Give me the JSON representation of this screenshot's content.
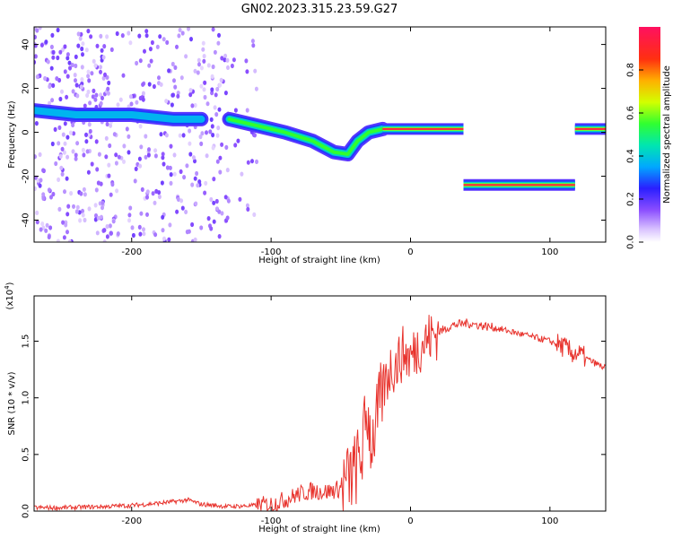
{
  "figure": {
    "title": "GN02.2023.315.23.59.G27"
  },
  "chart_data": [
    {
      "type": "heatmap",
      "xlabel": "Height of straight line (km)",
      "ylabel": "Frequency (Hz)",
      "xlim": [
        -270,
        140
      ],
      "ylim": [
        -50,
        48
      ],
      "x_ticks": [
        -200,
        -100,
        0,
        100
      ],
      "x_tick_labels": [
        "-200",
        "-100",
        "0",
        "100"
      ],
      "y_ticks": [
        -40,
        -20,
        0,
        20,
        40
      ],
      "y_tick_labels": [
        "-40",
        "-20",
        "0",
        "20",
        "40"
      ],
      "colorbar": {
        "label": "Normalized spectral amplitude",
        "range": [
          0,
          1
        ],
        "ticks": [
          0.0,
          0.2,
          0.4,
          0.6,
          0.8
        ],
        "tick_labels": [
          "0.0",
          "0.2",
          "0.4",
          "0.6",
          "0.8"
        ]
      },
      "tracks": [
        {
          "x": [
            -270,
            -240,
            -200,
            -170,
            -150
          ],
          "y": [
            10,
            8,
            8,
            6,
            6
          ],
          "amplitude": 0.22
        },
        {
          "x": [
            -130,
            -110,
            -90,
            -70,
            -55,
            -45,
            -38,
            -30,
            -20
          ],
          "y": [
            6,
            3,
            0,
            -4,
            -9,
            -10,
            -4,
            0,
            1.5
          ],
          "amplitude": 0.4
        },
        {
          "x": [
            -20,
            0,
            20,
            38
          ],
          "y": [
            1.5,
            1.5,
            1.5,
            1.5
          ],
          "amplitude": 0.95
        },
        {
          "x": [
            38,
            70,
            100,
            118
          ],
          "y": [
            -24,
            -24,
            -24,
            -24
          ],
          "amplitude": 0.95
        },
        {
          "x": [
            118,
            130,
            140
          ],
          "y": [
            1.5,
            1.5,
            1.5
          ],
          "amplitude": 0.95
        }
      ]
    },
    {
      "type": "line",
      "xlabel": "Height of straight line (km)",
      "ylabel": "SNR (10 * v/v)",
      "y_multiplier": "(x10",
      "y_multiplier_exp": "4",
      "y_multiplier_close": ")",
      "xlim": [
        -270,
        140
      ],
      "ylim": [
        0,
        1.9
      ],
      "x_ticks": [
        -200,
        -100,
        0,
        100
      ],
      "x_tick_labels": [
        "-200",
        "-100",
        "0",
        "100"
      ],
      "y_ticks": [
        0,
        0.5,
        1.0,
        1.5
      ],
      "y_tick_labels": [
        "0.0",
        "0.5",
        "1.0",
        "1.5"
      ],
      "series": [
        {
          "color": "#e8332d",
          "x": [
            -270,
            -250,
            -220,
            -200,
            -180,
            -165,
            -160,
            -150,
            -130,
            -110,
            -100,
            -90,
            -80,
            -70,
            -60,
            -50,
            -45,
            -40,
            -35,
            -31,
            -28,
            -25,
            -20,
            -15,
            -10,
            -5,
            0,
            5,
            10,
            20,
            30,
            40,
            50,
            60,
            80,
            100,
            110,
            115,
            120,
            130,
            140
          ],
          "y": [
            0.03,
            0.03,
            0.04,
            0.05,
            0.07,
            0.09,
            0.1,
            0.06,
            0.04,
            0.05,
            0.06,
            0.1,
            0.15,
            0.18,
            0.17,
            0.2,
            0.27,
            0.35,
            0.5,
            0.9,
            0.6,
            0.75,
            1.05,
            1.25,
            1.3,
            1.4,
            1.35,
            1.45,
            1.5,
            1.58,
            1.64,
            1.66,
            1.64,
            1.62,
            1.56,
            1.5,
            1.45,
            1.4,
            1.39,
            1.32,
            1.26
          ]
        }
      ]
    }
  ]
}
